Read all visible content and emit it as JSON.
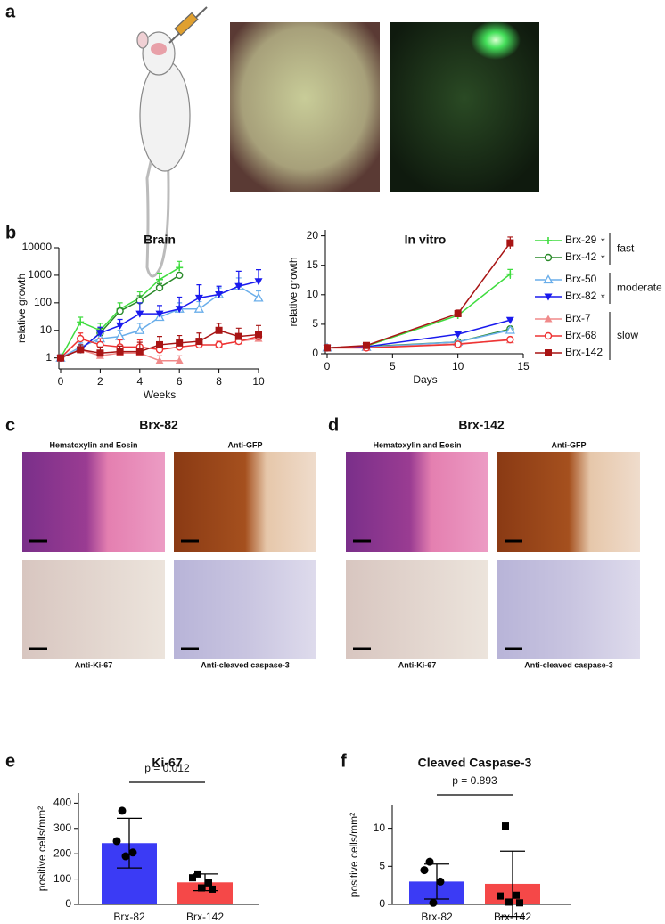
{
  "panels": [
    "a",
    "b",
    "c",
    "d",
    "e",
    "f"
  ],
  "micrographs": [
    {
      "title": "Brx-82",
      "stains": [
        "Hematoxylin and Eosin",
        "Anti-GFP",
        "Anti-Ki-67",
        "Anti-cleaved caspase-3"
      ]
    },
    {
      "title": "Brx-142",
      "stains": [
        "Hematoxylin and Eosin",
        "Anti-GFP",
        "Anti-Ki-67",
        "Anti-cleaved caspase-3"
      ]
    }
  ],
  "chart_data": [
    {
      "type": "line",
      "title": "Brain",
      "x_label": "Weeks",
      "y_label": "relative growth",
      "log_scale": true,
      "x": [
        0,
        1,
        2,
        3,
        4,
        5,
        6,
        7,
        8,
        9,
        10
      ],
      "xlim": [
        0,
        10
      ],
      "xticks": [
        0,
        2,
        4,
        6,
        8,
        10
      ],
      "ylim": [
        0.4,
        10000
      ],
      "yticks": [
        1,
        10,
        100,
        1000,
        10000
      ],
      "series": [
        {
          "name": "Brx-29",
          "flag": "*",
          "color": "#3fdc3f",
          "marker": "plus",
          "values": [
            1,
            20,
            10,
            60,
            150,
            700,
            1900,
            null,
            null,
            null,
            null
          ],
          "errors": [
            0,
            10,
            8,
            40,
            100,
            500,
            1300,
            null,
            null,
            null,
            null
          ]
        },
        {
          "name": "Brx-42",
          "flag": "*",
          "color": "#2a8a2a",
          "marker": "circle-open",
          "values": [
            1,
            2,
            8,
            50,
            120,
            350,
            1000,
            null,
            null,
            null,
            null
          ],
          "errors": [
            0,
            1,
            4,
            20,
            60,
            150,
            200,
            null,
            null,
            null,
            null
          ]
        },
        {
          "name": "Brx-50",
          "color": "#6aaeea",
          "marker": "triangle-open",
          "values": [
            1,
            2.5,
            5,
            6,
            10,
            30,
            60,
            60,
            200,
            400,
            150
          ],
          "errors": [
            0,
            1,
            3,
            4,
            8,
            15,
            40,
            50,
            150,
            400,
            120
          ]
        },
        {
          "name": "Brx-82",
          "flag": "*",
          "color": "#1a1aee",
          "marker": "triangle-down",
          "values": [
            1,
            2,
            8,
            15,
            40,
            40,
            60,
            150,
            200,
            400,
            600
          ],
          "errors": [
            0,
            1,
            5,
            10,
            60,
            40,
            100,
            300,
            200,
            1000,
            1000
          ]
        },
        {
          "name": "Brx-7",
          "color": "#f08a8a",
          "marker": "triangle",
          "values": [
            1,
            2,
            1.2,
            1.5,
            1.5,
            0.8,
            0.8,
            null,
            3,
            4,
            5
          ],
          "errors": [
            0,
            1,
            0.5,
            1,
            1,
            0.4,
            0.4,
            null,
            1,
            1,
            1
          ]
        },
        {
          "name": "Brx-68",
          "color": "#ee3333",
          "marker": "circle-open",
          "values": [
            1,
            5,
            3,
            2.5,
            2.5,
            2,
            2.5,
            3,
            3,
            4,
            6
          ],
          "errors": [
            0,
            3,
            2,
            2,
            2,
            1,
            1,
            2,
            1,
            2,
            3
          ]
        },
        {
          "name": "Brx-142",
          "color": "#a81414",
          "marker": "square",
          "values": [
            1,
            2,
            1.5,
            1.7,
            1.7,
            3,
            3.5,
            4,
            10,
            6,
            7
          ],
          "errors": [
            0,
            1,
            1,
            1,
            2,
            3,
            3,
            4,
            8,
            6,
            8
          ]
        }
      ],
      "legend_groups": [
        {
          "label": "fast",
          "count": 2
        },
        {
          "label": "moderate",
          "count": 2
        },
        {
          "label": "slow",
          "count": 3
        }
      ]
    },
    {
      "type": "line",
      "title": "In vitro",
      "x_label": "Days",
      "y_label": "relative growth",
      "x": [
        0,
        3,
        10,
        14
      ],
      "xlim": [
        0,
        15
      ],
      "xticks": [
        0,
        5,
        10,
        15
      ],
      "ylim": [
        0,
        21
      ],
      "yticks": [
        0,
        5,
        10,
        15,
        20
      ],
      "series": [
        {
          "color": "#3fdc3f",
          "marker": "plus",
          "values": [
            1,
            1.3,
            6.5,
            13.5
          ],
          "errors": [
            0.1,
            0.2,
            0.5,
            0.8
          ]
        },
        {
          "color": "#2a8a2a",
          "marker": "circle-open",
          "values": [
            1,
            1.2,
            2,
            4.2
          ],
          "errors": [
            0.1,
            0.1,
            0.2,
            0.3
          ]
        },
        {
          "color": "#6aaeea",
          "marker": "triangle-open",
          "values": [
            1,
            1.1,
            2,
            4
          ],
          "errors": [
            0.1,
            0.1,
            0.2,
            0.3
          ]
        },
        {
          "color": "#1a1aee",
          "marker": "triangle-down",
          "values": [
            1,
            1.2,
            3.3,
            5.7
          ],
          "errors": [
            0.1,
            0.1,
            0.2,
            0.3
          ]
        },
        {
          "color": "#f08a8a",
          "marker": "triangle",
          "values": [
            1,
            1,
            1.7,
            2.3
          ],
          "errors": [
            0.1,
            0.1,
            0.1,
            0.2
          ]
        },
        {
          "color": "#ee3333",
          "marker": "circle-open",
          "values": [
            1,
            1,
            1.6,
            2.4
          ],
          "errors": [
            0.1,
            0.1,
            0.1,
            0.2
          ]
        },
        {
          "color": "#a81414",
          "marker": "square",
          "values": [
            1,
            1.4,
            6.8,
            18.8
          ],
          "errors": [
            0.1,
            0.2,
            0.6,
            1
          ]
        }
      ]
    },
    {
      "type": "bar",
      "title": "Ki-67",
      "y_label": "positive cells/mm²",
      "p_value": "p = 0.012",
      "categories": [
        "Brx-82",
        "Brx-142"
      ],
      "values": [
        242,
        87
      ],
      "errors": [
        98,
        33
      ],
      "colors": [
        "#3b3bf5",
        "#f54848"
      ],
      "markers": [
        "circle",
        "square"
      ],
      "points": [
        [
          370,
          250,
          205,
          190
        ],
        [
          120,
          105,
          85,
          65,
          60
        ]
      ],
      "ylim": [
        0,
        440
      ],
      "yticks": [
        0,
        100,
        200,
        300,
        400
      ]
    },
    {
      "type": "bar",
      "title": "Cleaved Caspase-3",
      "y_label": "positive cells/mm²",
      "p_value": "p = 0.893",
      "categories": [
        "Brx-82",
        "Brx-142"
      ],
      "values": [
        3,
        2.7
      ],
      "errors": [
        2.3,
        4.3
      ],
      "colors": [
        "#3b3bf5",
        "#f54848"
      ],
      "markers": [
        "circle",
        "square"
      ],
      "points": [
        [
          5.6,
          4.5,
          3,
          0.2
        ],
        [
          10.3,
          1.1,
          1.2,
          0.3,
          0.2
        ]
      ],
      "ylim": [
        0,
        13
      ],
      "yticks": [
        0,
        5,
        10
      ]
    }
  ]
}
